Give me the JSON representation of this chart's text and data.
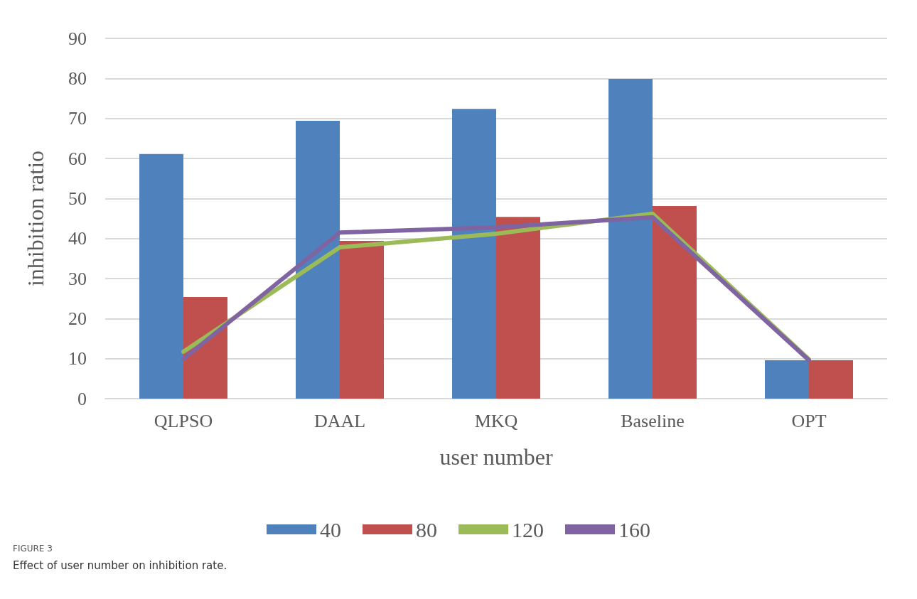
{
  "chart_data": {
    "type": "bar",
    "xlabel": "user number",
    "ylabel": "inhibition ratio",
    "categories": [
      "QLPSO",
      "DAAL",
      "MKQ",
      "Baseline",
      "OPT"
    ],
    "series": [
      {
        "name": "40",
        "color": "#4f81bd",
        "values": [
          61.1,
          69.4,
          72.4,
          79.9,
          9.6
        ]
      },
      {
        "name": "80",
        "color": "#c0504d",
        "values": [
          25.4,
          39.4,
          45.4,
          48.1,
          9.6
        ]
      },
      {
        "name": "120",
        "type": "line",
        "color": "#9bbb59",
        "values": [
          11.7,
          37.8,
          41.2,
          46.2,
          9.8
        ]
      },
      {
        "name": "160",
        "type": "line",
        "color": "#8064a2",
        "values": [
          9.9,
          41.5,
          42.8,
          45.3,
          9.6
        ]
      }
    ],
    "ylim": [
      0,
      90
    ],
    "yticks": [
      0,
      10,
      20,
      30,
      40,
      50,
      60,
      70,
      80,
      90
    ],
    "grid": "y",
    "legend": "bottom",
    "marker": "none",
    "line_style": "solid",
    "annotations": [
      "FIGURE 3",
      "Effect of user number on inhibition rate."
    ]
  }
}
